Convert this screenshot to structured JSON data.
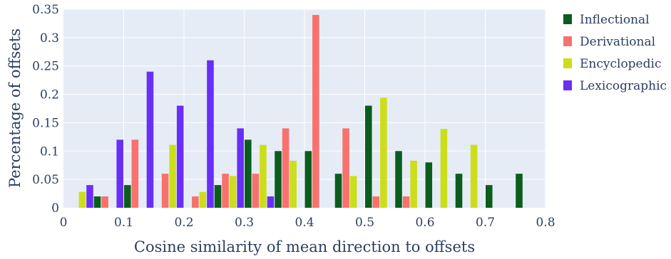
{
  "chart_data": {
    "type": "bar",
    "xlabel": "Cosine similarity of mean direction to offsets",
    "ylabel": "Percentage of offsets",
    "xlim": [
      0,
      0.8
    ],
    "ylim": [
      0,
      0.35
    ],
    "x_ticks": [
      "0",
      "0.1",
      "0.2",
      "0.3",
      "0.4",
      "0.5",
      "0.6",
      "0.7",
      "0.8"
    ],
    "y_ticks": [
      "0",
      "0.05",
      "0.1",
      "0.15",
      "0.2",
      "0.25",
      "0.3",
      "0.35"
    ],
    "x_tick_values": [
      0,
      0.1,
      0.2,
      0.3,
      0.4,
      0.5,
      0.6,
      0.7,
      0.8
    ],
    "y_tick_values": [
      0,
      0.05,
      0.1,
      0.15,
      0.2,
      0.25,
      0.3,
      0.35
    ],
    "bin_centers": [
      0.025,
      0.075,
      0.125,
      0.175,
      0.225,
      0.275,
      0.325,
      0.375,
      0.425,
      0.475,
      0.525,
      0.575,
      0.625,
      0.675,
      0.725,
      0.775
    ],
    "series": [
      {
        "name": "Inflectional",
        "color": "#0b5d1e",
        "values": [
          0,
          0.02,
          0.04,
          0,
          0,
          0.04,
          0.12,
          0.1,
          0.1,
          0.06,
          0.18,
          0.1,
          0.08,
          0.06,
          0.04,
          0.06
        ]
      },
      {
        "name": "Derivational",
        "color": "#f8716d",
        "values": [
          0,
          0.02,
          0.12,
          0.06,
          0.02,
          0.06,
          0.06,
          0.14,
          0.34,
          0.14,
          0.02,
          0.02,
          0,
          0,
          0,
          0
        ]
      },
      {
        "name": "Encyclopedic",
        "color": "#ccde1a",
        "values": [
          0.028,
          0,
          0,
          0.111,
          0.028,
          0.056,
          0.111,
          0.083,
          0,
          0.056,
          0.194,
          0.083,
          0.139,
          0.111,
          0,
          0
        ]
      },
      {
        "name": "Lexicographic",
        "color": "#6a2ff7",
        "values": [
          0.04,
          0.12,
          0.24,
          0.18,
          0.26,
          0.14,
          0.02,
          0,
          0,
          0,
          0,
          0,
          0,
          0,
          0,
          0
        ]
      }
    ],
    "grid": true,
    "legend_position": "right",
    "plot_background": "#e5ecf6"
  }
}
